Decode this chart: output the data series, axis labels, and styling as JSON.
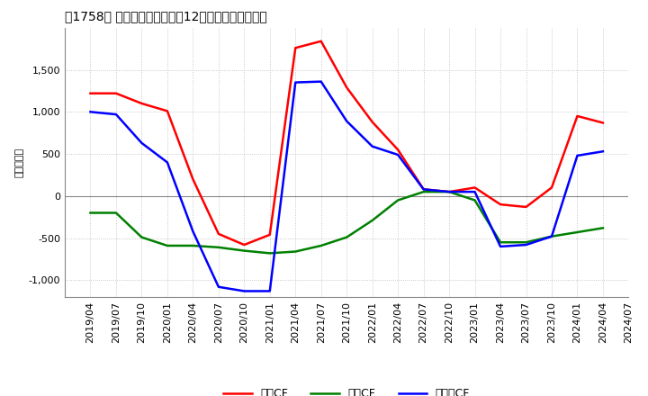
{
  "title": "［1758］ キャッシュフローの12か月移動合計の推移",
  "ylabel": "（百万円）",
  "ylim": [
    -1200,
    2000
  ],
  "yticks": [
    -1000,
    -500,
    0,
    500,
    1000,
    1500
  ],
  "legend_labels": [
    "営業CF",
    "投資CF",
    "フリーCF"
  ],
  "line_colors": [
    "#ff0000",
    "#008000",
    "#0000ff"
  ],
  "background_color": "#ffffff",
  "plot_bg_color": "#ffffff",
  "grid_color": "#bbbbbb",
  "dates": [
    "2019/04",
    "2019/07",
    "2019/10",
    "2020/01",
    "2020/04",
    "2020/07",
    "2020/10",
    "2021/01",
    "2021/04",
    "2021/07",
    "2021/10",
    "2022/01",
    "2022/04",
    "2022/07",
    "2022/10",
    "2023/01",
    "2023/04",
    "2023/07",
    "2023/10",
    "2024/01",
    "2024/04",
    "2024/07"
  ],
  "operating_cf": [
    1220,
    1220,
    1100,
    1010,
    200,
    -450,
    -580,
    -460,
    1760,
    1840,
    1290,
    880,
    550,
    80,
    50,
    100,
    -100,
    -130,
    100,
    950,
    870,
    null
  ],
  "investing_cf": [
    -200,
    -200,
    -490,
    -590,
    -590,
    -610,
    -650,
    -680,
    -660,
    -590,
    -490,
    -290,
    -50,
    50,
    50,
    -50,
    -550,
    -550,
    -480,
    -430,
    -380,
    null
  ],
  "free_cf": [
    1000,
    970,
    630,
    400,
    -420,
    -1080,
    -1130,
    -1130,
    1350,
    1360,
    890,
    590,
    490,
    80,
    50,
    50,
    -600,
    -580,
    -480,
    480,
    530,
    null
  ]
}
